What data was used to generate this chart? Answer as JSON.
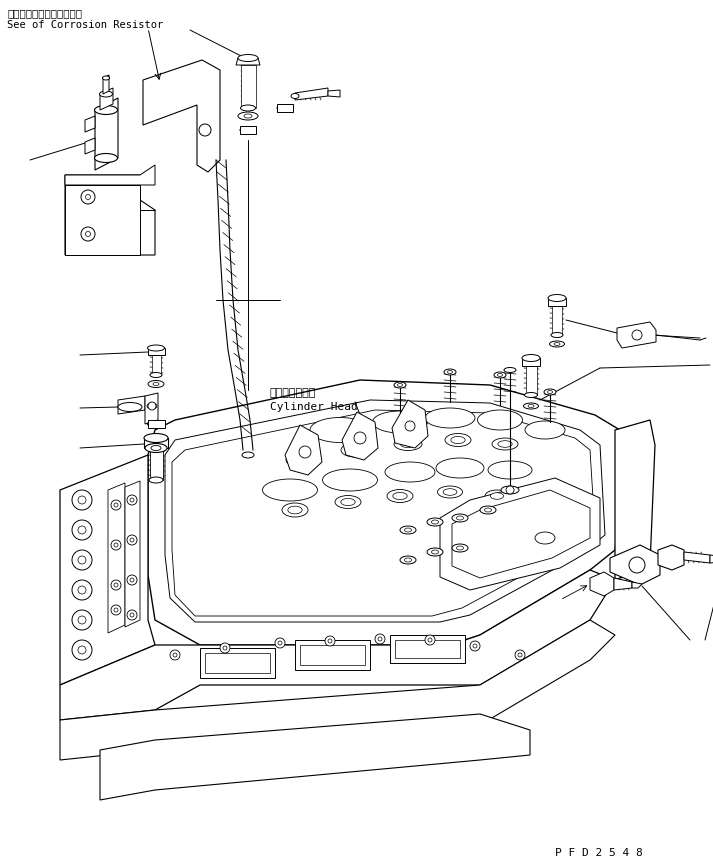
{
  "bg_color": "#ffffff",
  "line_color": "#000000",
  "text_color": "#000000",
  "title_jp": "コロージョンレジスタ参照",
  "title_en": "See of Corrosion Resistor",
  "label_cylinder_jp": "シリンダヘッド",
  "label_cylinder_en": "Cylinder Head",
  "code": "P F D 2 5 4 8",
  "figsize": [
    7.13,
    8.65
  ],
  "dpi": 100
}
